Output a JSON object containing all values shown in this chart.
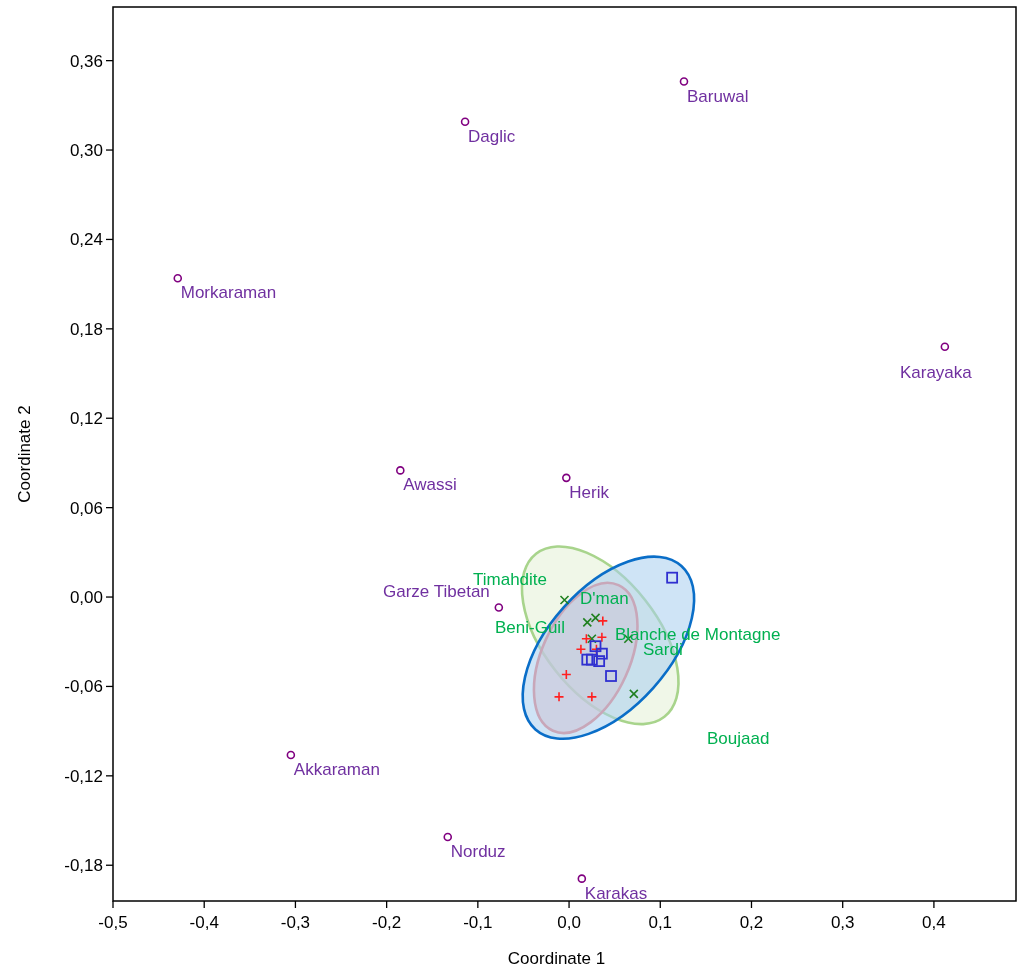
{
  "chart_data": {
    "type": "scatter",
    "xlabel": "Coordinate 1",
    "ylabel": "Coordinate 2",
    "xlim": [
      -0.5,
      0.49
    ],
    "ylim": [
      -0.204,
      0.396
    ],
    "xticks": [
      {
        "value": -0.5,
        "label": "-0,5"
      },
      {
        "value": -0.4,
        "label": "-0,4"
      },
      {
        "value": -0.3,
        "label": "-0,3"
      },
      {
        "value": -0.2,
        "label": "-0,2"
      },
      {
        "value": -0.1,
        "label": "-0,1"
      },
      {
        "value": 0,
        "label": "0,0"
      },
      {
        "value": 0.1,
        "label": "0,1"
      },
      {
        "value": 0.2,
        "label": "0,2"
      },
      {
        "value": 0.3,
        "label": "0,3"
      },
      {
        "value": 0.4,
        "label": "0,4"
      }
    ],
    "yticks": [
      {
        "value": -0.18,
        "label": "-0,18"
      },
      {
        "value": -0.12,
        "label": "-0,12"
      },
      {
        "value": -0.06,
        "label": "-0,06"
      },
      {
        "value": 0,
        "label": "0,00"
      },
      {
        "value": 0.06,
        "label": "0,06"
      },
      {
        "value": 0.12,
        "label": "0,12"
      },
      {
        "value": 0.18,
        "label": "0,18"
      },
      {
        "value": 0.24,
        "label": "0,24"
      },
      {
        "value": 0.3,
        "label": "0,30"
      },
      {
        "value": 0.36,
        "label": "0,36"
      }
    ],
    "grid": false,
    "legend": false,
    "series": [
      {
        "color": "#800080",
        "marker": "circle",
        "x": [
          0.126,
          -0.114,
          -0.429,
          0.412,
          -0.185,
          -0.003,
          -0.077,
          -0.305,
          -0.133,
          0.014
        ],
        "values": [
          0.346,
          0.319,
          0.214,
          0.168,
          0.085,
          0.08,
          -0.007,
          -0.106,
          -0.161,
          -0.189
        ]
      },
      {
        "color": "#208020",
        "marker": "x",
        "x": [
          -0.005,
          0.02,
          0.029,
          0.025,
          0.065,
          0.071
        ],
        "values": [
          -0.002,
          -0.017,
          -0.014,
          -0.028,
          -0.028,
          -0.065
        ]
      },
      {
        "color": "#ff2020",
        "marker": "cross",
        "x": [
          0.037,
          0.036,
          0.019,
          0.013,
          0.03,
          -0.003,
          -0.011,
          0.025
        ],
        "values": [
          -0.016,
          -0.027,
          -0.028,
          -0.035,
          -0.035,
          -0.052,
          -0.067,
          -0.067
        ]
      },
      {
        "color": "#3030d0",
        "marker": "square",
        "x": [
          0.113,
          0.029,
          0.036,
          0.02,
          0.025,
          0.033,
          0.046
        ],
        "values": [
          0.013,
          -0.033,
          -0.038,
          -0.042,
          -0.042,
          -0.043,
          -0.053
        ]
      }
    ],
    "annotations": [
      {
        "text": "Baruwal",
        "x": 0.126,
        "y": 0.346
      },
      {
        "text": "Daglic",
        "x": -0.114,
        "y": 0.319
      },
      {
        "text": "Morkaraman",
        "x": -0.429,
        "y": 0.214
      },
      {
        "text": "Karayaka",
        "x": 0.412,
        "y": 0.168
      },
      {
        "text": "Awassi",
        "x": -0.185,
        "y": 0.085
      },
      {
        "text": "Herik",
        "x": -0.003,
        "y": 0.08
      },
      {
        "text": "Garze Tibetan",
        "x": -0.077,
        "y": -0.007
      },
      {
        "text": "Akkaraman",
        "x": -0.305,
        "y": -0.106
      },
      {
        "text": "Norduz",
        "x": -0.133,
        "y": -0.161
      },
      {
        "text": "Karakas",
        "x": 0.014,
        "y": -0.189
      },
      "Timahdite",
      "D'man",
      "Beni-Guil",
      "Blanche de Montagne",
      "Sardi",
      "Boujaad"
    ]
  }
}
